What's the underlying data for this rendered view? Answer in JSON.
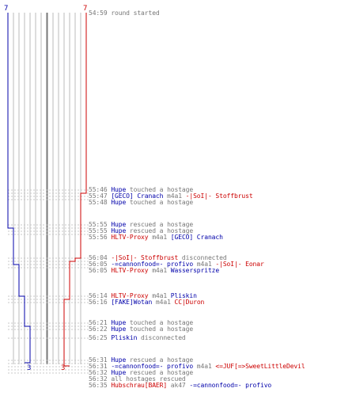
{
  "colors": {
    "ct": "#0000aa",
    "t": "#cc0000",
    "neutral": "#777777",
    "grid": "#bbbbbb",
    "dash": "#c8c8c8"
  },
  "counts": {
    "ct_start": "7",
    "t_start": "7",
    "ct_end": "3",
    "t_end": "3"
  },
  "events": [
    {
      "time": "54:59",
      "parts": [
        {
          "c": "gray",
          "t": "round started"
        }
      ]
    },
    {
      "time": "55:46",
      "parts": [
        {
          "c": "blue",
          "t": "Hupe"
        },
        {
          "c": "gray",
          "t": " touched a hostage"
        }
      ]
    },
    {
      "time": "55:47",
      "parts": [
        {
          "c": "blue",
          "t": "[GECO] Cranach"
        },
        {
          "c": "gray",
          "t": " m4a1 "
        },
        {
          "c": "red",
          "t": "-|SoI|- Stoffbrust"
        }
      ]
    },
    {
      "time": "55:48",
      "parts": [
        {
          "c": "blue",
          "t": "Hupe"
        },
        {
          "c": "gray",
          "t": " touched a hostage"
        }
      ]
    },
    {
      "time": "55:55",
      "parts": [
        {
          "c": "blue",
          "t": "Hupe"
        },
        {
          "c": "gray",
          "t": " rescued a hostage"
        }
      ]
    },
    {
      "time": "55:55",
      "parts": [
        {
          "c": "blue",
          "t": "Hupe"
        },
        {
          "c": "gray",
          "t": " rescued a hostage"
        }
      ]
    },
    {
      "time": "55:56",
      "parts": [
        {
          "c": "red",
          "t": "HLTV-Proxy"
        },
        {
          "c": "gray",
          "t": " m4a1 "
        },
        {
          "c": "blue",
          "t": "[GECO] Cranach"
        }
      ]
    },
    {
      "time": "56:04",
      "parts": [
        {
          "c": "red",
          "t": "-|SoI|- Stoffbrust"
        },
        {
          "c": "gray",
          "t": " disconnected"
        }
      ]
    },
    {
      "time": "56:05",
      "parts": [
        {
          "c": "blue",
          "t": "-=cannonfood=- profivo"
        },
        {
          "c": "gray",
          "t": " m4a1 "
        },
        {
          "c": "red",
          "t": "-|SoI|- Eonar"
        }
      ]
    },
    {
      "time": "56:05",
      "parts": [
        {
          "c": "red",
          "t": "HLTV-Proxy"
        },
        {
          "c": "gray",
          "t": " m4a1 "
        },
        {
          "c": "blue",
          "t": "Wasserspritze"
        }
      ]
    },
    {
      "time": "56:14",
      "parts": [
        {
          "c": "red",
          "t": "HLTV-Proxy"
        },
        {
          "c": "gray",
          "t": " m4a1 "
        },
        {
          "c": "blue",
          "t": "Pliskin"
        }
      ]
    },
    {
      "time": "56:16",
      "parts": [
        {
          "c": "blue",
          "t": "[FAKE]Wotan"
        },
        {
          "c": "gray",
          "t": " m4a1 "
        },
        {
          "c": "red",
          "t": "CC|Duron"
        }
      ]
    },
    {
      "time": "56:21",
      "parts": [
        {
          "c": "blue",
          "t": "Hupe"
        },
        {
          "c": "gray",
          "t": " touched a hostage"
        }
      ]
    },
    {
      "time": "56:22",
      "parts": [
        {
          "c": "blue",
          "t": "Hupe"
        },
        {
          "c": "gray",
          "t": " touched a hostage"
        }
      ]
    },
    {
      "time": "56:25",
      "parts": [
        {
          "c": "blue",
          "t": "Pliskin"
        },
        {
          "c": "gray",
          "t": " disconnected"
        }
      ]
    },
    {
      "time": "56:31",
      "parts": [
        {
          "c": "blue",
          "t": "Hupe"
        },
        {
          "c": "gray",
          "t": " rescued a hostage"
        }
      ]
    },
    {
      "time": "56:31",
      "parts": [
        {
          "c": "blue",
          "t": "-=cannonfood=- profivo"
        },
        {
          "c": "gray",
          "t": " m4a1 "
        },
        {
          "c": "red",
          "t": "<=JUF[=>SweetLittleDevil"
        }
      ]
    },
    {
      "time": "56:32",
      "parts": [
        {
          "c": "blue",
          "t": "Hupe"
        },
        {
          "c": "gray",
          "t": " rescued a hostage"
        }
      ]
    },
    {
      "time": "56:32",
      "parts": [
        {
          "c": "gray",
          "t": "all hostages rescued"
        }
      ]
    },
    {
      "time": "56:35",
      "parts": [
        {
          "c": "red",
          "t": "Hubschrau[BAER]"
        },
        {
          "c": "gray",
          "t": " ak47 "
        },
        {
          "c": "blue",
          "t": "-=cannonfood=- profivo"
        }
      ]
    }
  ]
}
